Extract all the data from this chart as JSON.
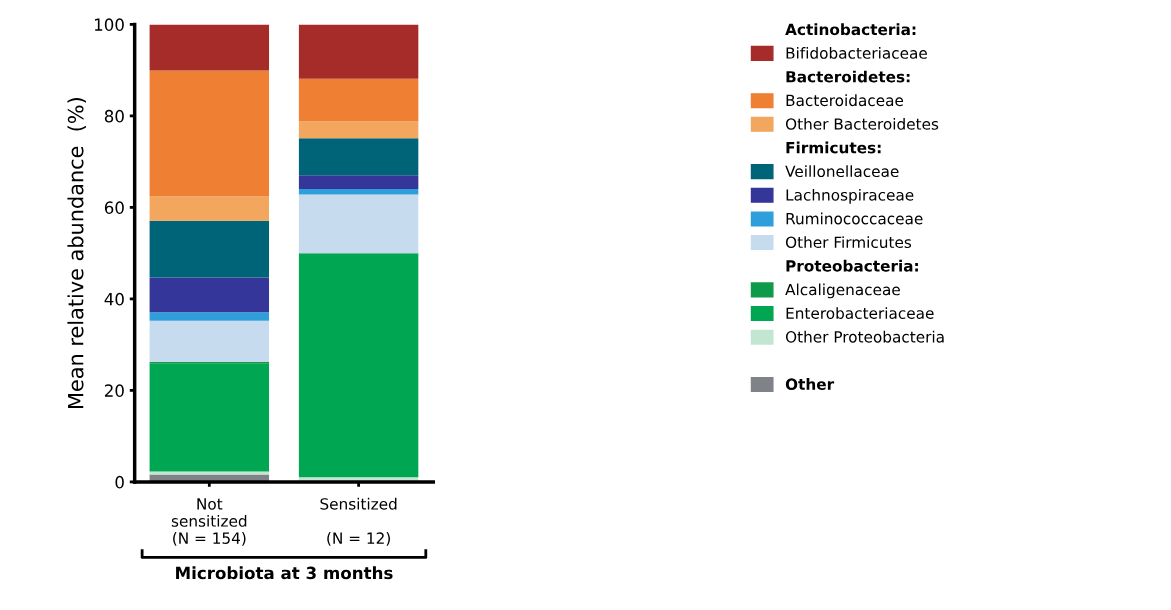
{
  "chart_data": {
    "type": "bar",
    "stacked": true,
    "ylabel": "Mean relative abundance  (%)",
    "xlabel": "Microbiota at 3 months",
    "categories": [
      "Not\nsensitized\n(N = 154)",
      "Sensitized\n\n(N = 12)"
    ],
    "ylim": [
      0,
      100
    ],
    "yticks": [
      0,
      20,
      40,
      60,
      80,
      100
    ],
    "grid": false,
    "legend": "right",
    "annotations": [
      "Actinobacteria:",
      "Bacteroidetes:",
      "Firmicutes:",
      "Proteobacteria:"
    ],
    "series": [
      {
        "name": "Other",
        "color": "#7f8387",
        "values": [
          1.6,
          0
        ]
      },
      {
        "name": "Other Proteobacteria",
        "color": "#c3e6d2",
        "values": [
          0.7,
          1.0
        ]
      },
      {
        "name": "Enterobacteriaceae",
        "color": "#00a651",
        "values": [
          23.5,
          48.8
        ]
      },
      {
        "name": "Alcaligenaceae",
        "color": "#0f9a4b",
        "values": [
          0.4,
          0.2
        ]
      },
      {
        "name": "Other Firmicutes",
        "color": "#c6dcee",
        "values": [
          9.0,
          12.8
        ]
      },
      {
        "name": "Ruminococcaceae",
        "color": "#2f9fdc",
        "values": [
          1.9,
          1.2
        ]
      },
      {
        "name": "Lachnospiraceae",
        "color": "#343799",
        "values": [
          7.6,
          3.0
        ]
      },
      {
        "name": "Veillonellaceae",
        "color": "#006479",
        "values": [
          12.4,
          8.1
        ]
      },
      {
        "name": "Other Bacteroidetes",
        "color": "#f2a65e",
        "values": [
          5.3,
          3.7
        ]
      },
      {
        "name": "Bacteroidaceae",
        "color": "#ee7f33",
        "values": [
          27.5,
          9.3
        ]
      },
      {
        "name": "Bifidobacteriaceae",
        "color": "#a62c2a",
        "values": [
          10.1,
          11.9
        ]
      }
    ]
  }
}
